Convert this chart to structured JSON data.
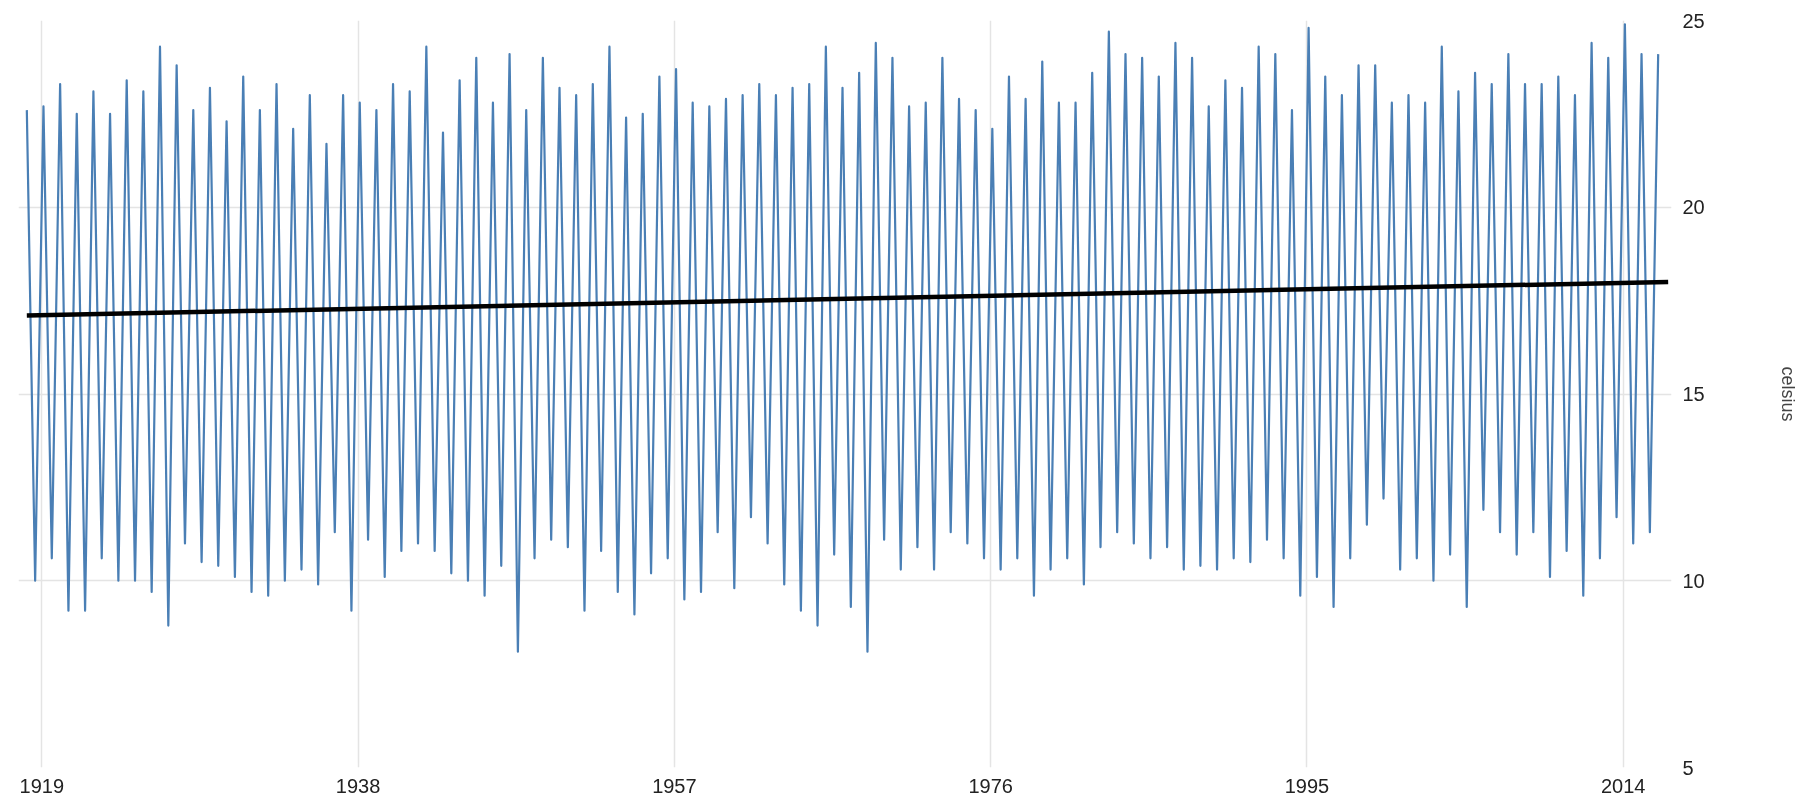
{
  "chart_data": {
    "type": "line",
    "ylabel": "celsius",
    "xlim": [
      1917.6,
      2016.9
    ],
    "xticks": [
      1919,
      1938,
      1957,
      1976,
      1995,
      2014
    ],
    "ylim": [
      5,
      25
    ],
    "yticks": [
      5,
      10,
      15,
      20,
      25
    ],
    "grid": true,
    "series": [
      {
        "color": "#4a7fb5",
        "x": [
          1918.1,
          1918.6,
          1919.1,
          1919.6,
          1920.1,
          1920.6,
          1921.1,
          1921.6,
          1922.1,
          1922.6,
          1923.1,
          1923.6,
          1924.1,
          1924.6,
          1925.1,
          1925.6,
          1926.1,
          1926.6,
          1927.1,
          1927.6,
          1928.1,
          1928.6,
          1929.1,
          1929.6,
          1930.1,
          1930.6,
          1931.1,
          1931.6,
          1932.1,
          1932.6,
          1933.1,
          1933.6,
          1934.1,
          1934.6,
          1935.1,
          1935.6,
          1936.1,
          1936.6,
          1937.1,
          1937.6,
          1938.1,
          1938.6,
          1939.1,
          1939.6,
          1940.1,
          1940.6,
          1941.1,
          1941.6,
          1942.1,
          1942.6,
          1943.1,
          1943.6,
          1944.1,
          1944.6,
          1945.1,
          1945.6,
          1946.1,
          1946.6,
          1947.1,
          1947.6,
          1948.1,
          1948.6,
          1949.1,
          1949.6,
          1950.1,
          1950.6,
          1951.1,
          1951.6,
          1952.1,
          1952.6,
          1953.1,
          1953.6,
          1954.1,
          1954.6,
          1955.1,
          1955.6,
          1956.1,
          1956.6,
          1957.1,
          1957.6,
          1958.1,
          1958.6,
          1959.1,
          1959.6,
          1960.1,
          1960.6,
          1961.1,
          1961.6,
          1962.1,
          1962.6,
          1963.1,
          1963.6,
          1964.1,
          1964.6,
          1965.1,
          1965.6,
          1966.1,
          1966.6,
          1967.1,
          1967.6,
          1968.1,
          1968.6,
          1969.1,
          1969.6,
          1970.1,
          1970.6,
          1971.1,
          1971.6,
          1972.1,
          1972.6,
          1973.1,
          1973.6,
          1974.1,
          1974.6,
          1975.1,
          1975.6,
          1976.1,
          1976.6,
          1977.1,
          1977.6,
          1978.1,
          1978.6,
          1979.1,
          1979.6,
          1980.1,
          1980.6,
          1981.1,
          1981.6,
          1982.1,
          1982.6,
          1983.1,
          1983.6,
          1984.1,
          1984.6,
          1985.1,
          1985.6,
          1986.1,
          1986.6,
          1987.1,
          1987.6,
          1988.1,
          1988.6,
          1989.1,
          1989.6,
          1990.1,
          1990.6,
          1991.1,
          1991.6,
          1992.1,
          1992.6,
          1993.1,
          1993.6,
          1994.1,
          1994.6,
          1995.1,
          1995.6,
          1996.1,
          1996.6,
          1997.1,
          1997.6,
          1998.1,
          1998.6,
          1999.1,
          1999.6,
          2000.1,
          2000.6,
          2001.1,
          2001.6,
          2002.1,
          2002.6,
          2003.1,
          2003.6,
          2004.1,
          2004.6,
          2005.1,
          2005.6,
          2006.1,
          2006.6,
          2007.1,
          2007.6,
          2008.1,
          2008.6,
          2009.1,
          2009.6,
          2010.1,
          2010.6,
          2011.1,
          2011.6,
          2012.1,
          2012.6,
          2013.1,
          2013.6,
          2014.1,
          2014.6,
          2015.1,
          2015.6,
          2016.1
        ],
        "values": [
          22.6,
          10.0,
          22.7,
          10.6,
          23.3,
          9.2,
          22.5,
          9.2,
          23.1,
          10.6,
          22.5,
          10.0,
          23.4,
          10.0,
          23.1,
          9.7,
          24.3,
          8.8,
          23.8,
          11.0,
          22.6,
          10.5,
          23.2,
          10.4,
          22.3,
          10.1,
          23.5,
          9.7,
          22.6,
          9.6,
          23.3,
          10.0,
          22.1,
          10.3,
          23.0,
          9.9,
          21.7,
          11.3,
          23.0,
          9.2,
          22.8,
          11.1,
          22.6,
          10.1,
          23.3,
          10.8,
          23.1,
          11.0,
          24.3,
          10.8,
          22.0,
          10.2,
          23.4,
          10.0,
          24.0,
          9.6,
          22.8,
          10.4,
          24.1,
          8.1,
          22.6,
          10.6,
          24.0,
          11.1,
          23.2,
          10.9,
          23.0,
          9.2,
          23.3,
          10.8,
          24.3,
          9.7,
          22.4,
          9.1,
          22.5,
          10.2,
          23.5,
          10.6,
          23.7,
          9.5,
          22.8,
          9.7,
          22.7,
          11.3,
          22.9,
          9.8,
          23.0,
          11.7,
          23.3,
          11.0,
          23.0,
          9.9,
          23.2,
          9.2,
          23.3,
          8.8,
          24.3,
          10.7,
          23.2,
          9.3,
          23.6,
          8.1,
          24.4,
          11.1,
          24.0,
          10.3,
          22.7,
          10.9,
          22.8,
          10.3,
          24.0,
          11.3,
          22.9,
          11.0,
          22.6,
          10.6,
          22.1,
          10.3,
          23.5,
          10.6,
          22.9,
          9.6,
          23.9,
          10.3,
          22.8,
          10.6,
          22.8,
          9.9,
          23.6,
          10.9,
          24.7,
          11.3,
          24.1,
          11.0,
          24.0,
          10.6,
          23.5,
          10.9,
          24.4,
          10.3,
          24.0,
          10.4,
          22.7,
          10.3,
          23.4,
          10.6,
          23.2,
          10.5,
          24.3,
          11.1,
          24.1,
          10.6,
          22.6,
          9.6,
          24.8,
          10.1,
          23.5,
          9.3,
          23.0,
          10.6,
          23.8,
          11.5,
          23.8,
          12.2,
          22.8,
          10.3,
          23.0,
          10.6,
          22.8,
          10.0,
          24.3,
          10.7,
          23.1,
          9.3,
          23.6,
          11.9,
          23.3,
          11.3,
          24.1,
          10.7,
          23.3,
          11.3,
          23.3,
          10.1,
          23.5,
          10.8,
          23.0,
          9.6,
          24.4,
          10.6,
          24.0,
          11.7,
          24.9,
          11.0,
          24.1,
          11.3,
          24.1
        ]
      },
      {
        "color": "#000000",
        "x": [
          1918.1,
          2016.7
        ],
        "values": [
          17.1,
          18.0
        ]
      }
    ]
  }
}
